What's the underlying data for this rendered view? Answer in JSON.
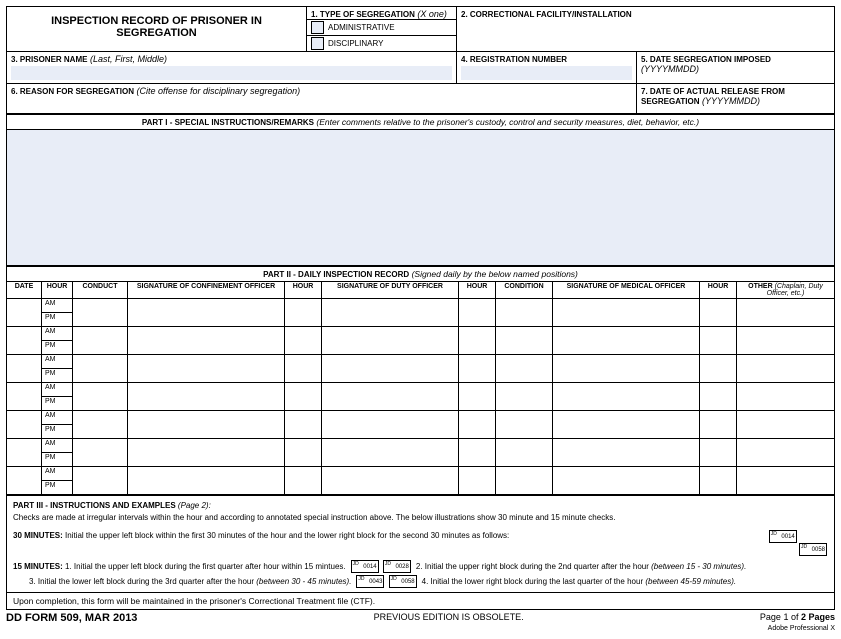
{
  "header": {
    "title": "INSPECTION RECORD OF PRISONER IN SEGREGATION",
    "f1_label": "1.  TYPE OF SEGREGATION",
    "f1_hint": "(X one)",
    "f1_opt1": "ADMINISTRATIVE",
    "f1_opt2": "DISCIPLINARY",
    "f2_label": "2.   CORRECTIONAL FACILITY/INSTALLATION",
    "f3_label": "3.  PRISONER NAME",
    "f3_hint": "(Last, First, Middle)",
    "f4_label": "4.  REGISTRATION NUMBER",
    "f5_label": "5.  DATE SEGREGATION IMPOSED",
    "f5_hint": "(YYYYMMDD)",
    "f6_label": "6.  REASON FOR SEGREGATION",
    "f6_hint": "(Cite offense for disciplinary segregation)",
    "f7_label": "7.  DATE OF ACTUAL RELEASE FROM SEGREGATION",
    "f7_hint": "(YYYYMMDD)"
  },
  "part1": {
    "title": "PART I  - SPECIAL INSTRUCTIONS/REMARKS",
    "hint": "(Enter comments relative to the prisoner's custody, control and security measures, diet, behavior, etc.)"
  },
  "part2": {
    "title": "PART II - DAILY INSPECTION RECORD",
    "hint": "(Signed daily by the below named positions)",
    "cols": {
      "date": "DATE",
      "hour": "HOUR",
      "conduct": "CONDUCT",
      "sig_conf": "SIGNATURE OF CONFINEMENT OFFICER",
      "sig_duty": "SIGNATURE OF DUTY OFFICER",
      "condition": "CONDITION",
      "sig_med": "SIGNATURE OF MEDICAL OFFICER",
      "other": "OTHER",
      "other_hint": "(Chaplain, Duty Officer, etc.)"
    },
    "am": "AM",
    "pm": "PM",
    "row_count": 7
  },
  "part3": {
    "title": "PART III  - INSTRUCTIONS AND EXAMPLES",
    "title_hint": "(Page 2):",
    "line1": "Checks are made at irregular intervals within the hour and according to annotated special instruction above.  The below illustrations show 30 minute and 15 minute checks.",
    "l30_label": "30 MINUTES:",
    "l30_text": "Initial the upper left block within the first 30 minutes of the hour and the lower right block for the second 30 minutes as follows:",
    "l15_label": "15 MINUTES:",
    "l15_1": "1.  Initial the upper left block during the first quarter after hour within 15 mintues.",
    "l15_2": "2.  Initial the upper right block during the 2nd quarter after the hour",
    "l15_2_hint": "(between 15 - 30 minutes).",
    "l15_3": "3.  Initial the lower left block during the 3rd quarter after the hour",
    "l15_3_hint": "(between 30 - 45 minutes).",
    "l15_4": "4.  Initial the lower right block during the last quarter of the hour",
    "l15_4_hint": "(between 45-59 minutes).",
    "box_tl": "JD",
    "box_vals": {
      "a": "0014",
      "b": "0028",
      "c": "0043",
      "d": "0058"
    }
  },
  "completion": "Upon completion, this form will be maintained in the prisoner's Correctional Treatment file (CTF).",
  "footer": {
    "left": "DD FORM 509, MAR 2013",
    "center": "PREVIOUS EDITION IS OBSOLETE.",
    "right1": "Page 1 of",
    "right2": "2 Pages",
    "right3": "Adobe Professional X"
  }
}
